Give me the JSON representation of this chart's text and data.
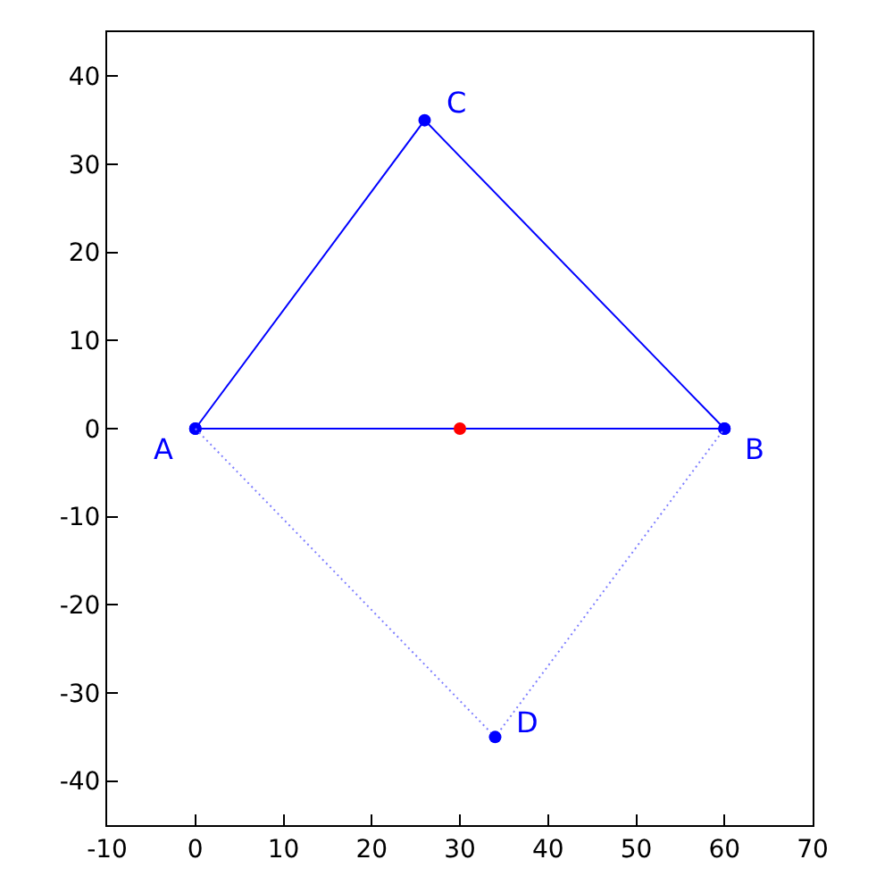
{
  "chart_data": {
    "type": "line",
    "series": [
      {
        "color": "#0000ff",
        "x": [
          0,
          26,
          60
        ],
        "values": [
          0,
          35,
          0
        ],
        "marker": "circle",
        "line_style": "solid"
      },
      {
        "color": "#0000ff",
        "x": [
          0,
          60
        ],
        "values": [
          0,
          0
        ],
        "marker": "circle",
        "line_style": "solid"
      },
      {
        "color": "#8080ff",
        "x": [
          0,
          34,
          60
        ],
        "values": [
          0,
          -35,
          0
        ],
        "marker": "none",
        "line_style": "dotted"
      },
      {
        "type": "scatter",
        "color": "#0000ff",
        "x": [
          34
        ],
        "values": [
          -35
        ],
        "marker": "circle"
      },
      {
        "type": "scatter",
        "color": "#ff0000",
        "x": [
          30
        ],
        "values": [
          0
        ],
        "marker": "circle"
      }
    ],
    "annotations": [
      {
        "text": "A",
        "x": 0,
        "y": 0
      },
      {
        "text": "B",
        "x": 60,
        "y": 0
      },
      {
        "text": "C",
        "x": 26,
        "y": 35
      },
      {
        "text": "D",
        "x": 34,
        "y": -35
      }
    ],
    "xlim": [
      -10,
      70
    ],
    "xticks": [
      -10,
      0,
      10,
      20,
      30,
      40,
      50,
      60,
      70
    ],
    "ylim": [
      -45,
      45
    ],
    "yticks": [
      -40,
      -30,
      -20,
      -10,
      0,
      10,
      20,
      30,
      40
    ]
  }
}
